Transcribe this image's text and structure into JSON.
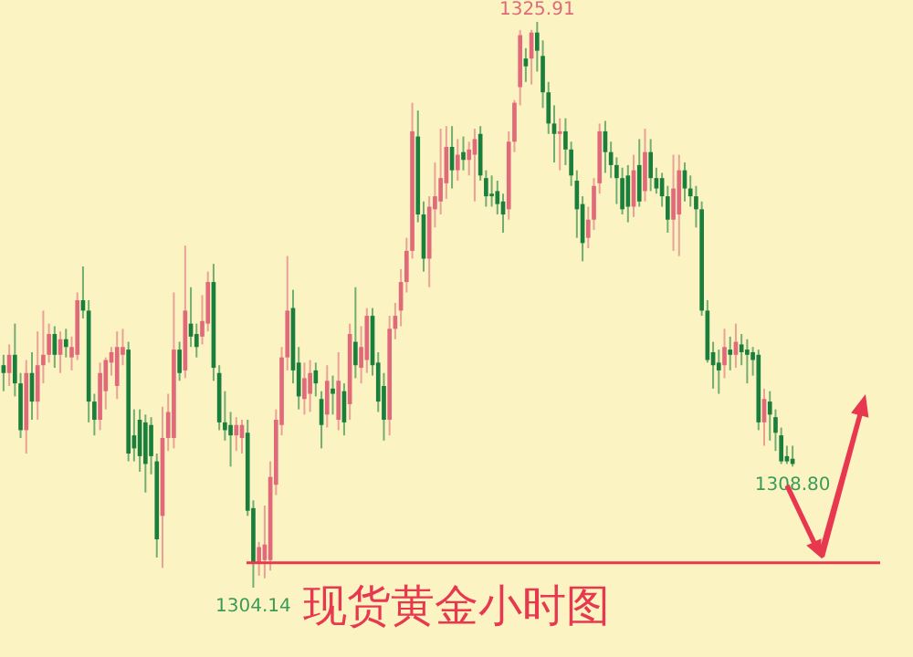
{
  "chart_data": {
    "type": "candlestick",
    "title": "现货黄金小时图",
    "categories": [
      null,
      null,
      null,
      null,
      null,
      null,
      null,
      null,
      null,
      null,
      null,
      null,
      null,
      null,
      null,
      null,
      null,
      null,
      null,
      null,
      null,
      null,
      null,
      null,
      null,
      null,
      null,
      null,
      null,
      null,
      null,
      null,
      null,
      null,
      null,
      null,
      null,
      null,
      null,
      null,
      null,
      null,
      null,
      null,
      null,
      null,
      null,
      null,
      null,
      null,
      null,
      null,
      null,
      null,
      null,
      null,
      null,
      null,
      null,
      null,
      null,
      null,
      null,
      null,
      null,
      null,
      null,
      null,
      null,
      null,
      null,
      null,
      null,
      null,
      null,
      null,
      null,
      null,
      null,
      null,
      null,
      null,
      null,
      null,
      null,
      null,
      null,
      null,
      null,
      null,
      null,
      null,
      null,
      null,
      null,
      null,
      null,
      null,
      null,
      null,
      null,
      null,
      null,
      null,
      null,
      null,
      null,
      null,
      null,
      null,
      null,
      null,
      null,
      null,
      null,
      null,
      null,
      null,
      null,
      null,
      null,
      null,
      null,
      null,
      null,
      null,
      null,
      null,
      null,
      null,
      null,
      null,
      null,
      null,
      null,
      null,
      null,
      null,
      null,
      null
    ],
    "ohlc": [
      [
        1312.7,
        1313.1,
        1311.7,
        1312.4
      ],
      [
        1312.4,
        1313.5,
        1311.9,
        1313.1
      ],
      [
        1313.1,
        1314.3,
        1311.5,
        1312.0
      ],
      [
        1312.0,
        1312.4,
        1309.9,
        1310.2
      ],
      [
        1310.2,
        1312.9,
        1309.3,
        1312.4
      ],
      [
        1312.4,
        1313.2,
        1310.6,
        1311.3
      ],
      [
        1311.3,
        1314.0,
        1310.6,
        1312.7
      ],
      [
        1312.7,
        1314.8,
        1312.0,
        1313.1
      ],
      [
        1313.1,
        1314.3,
        1312.8,
        1313.9
      ],
      [
        1313.9,
        1314.2,
        1312.6,
        1313.1
      ],
      [
        1313.1,
        1314.0,
        1312.4,
        1313.7
      ],
      [
        1313.7,
        1314.1,
        1313.0,
        1313.4
      ],
      [
        1313.0,
        1313.8,
        1312.5,
        1313.4
      ],
      [
        1313.1,
        1315.5,
        1312.9,
        1315.2
      ],
      [
        1315.2,
        1316.5,
        1314.5,
        1314.8
      ],
      [
        1314.8,
        1315.2,
        1310.5,
        1311.3
      ],
      [
        1311.3,
        1311.6,
        1310.0,
        1310.6
      ],
      [
        1310.6,
        1312.8,
        1310.2,
        1312.4
      ],
      [
        1311.7,
        1313.0,
        1311.0,
        1312.9
      ],
      [
        1312.8,
        1313.4,
        1312.3,
        1313.2
      ],
      [
        1311.9,
        1314.0,
        1311.4,
        1313.4
      ],
      [
        1313.1,
        1314.1,
        1312.7,
        1313.4
      ],
      [
        1313.3,
        1313.6,
        1309.0,
        1309.3
      ],
      [
        1310.0,
        1311.0,
        1309.0,
        1309.5
      ],
      [
        1310.6,
        1311.0,
        1308.6,
        1309.2
      ],
      [
        1310.5,
        1310.8,
        1307.8,
        1308.9
      ],
      [
        1310.4,
        1310.7,
        1308.5,
        1309.2
      ],
      [
        1309.0,
        1309.3,
        1305.3,
        1306.0
      ],
      [
        1306.9,
        1311.1,
        1304.9,
        1309.9
      ],
      [
        1309.9,
        1311.6,
        1309.4,
        1310.9
      ],
      [
        1309.9,
        1315.5,
        1309.5,
        1313.3
      ],
      [
        1313.3,
        1313.6,
        1312.1,
        1312.4
      ],
      [
        1312.5,
        1317.3,
        1312.2,
        1314.8
      ],
      [
        1314.3,
        1315.7,
        1313.4,
        1313.8
      ],
      [
        1313.9,
        1314.3,
        1313.0,
        1313.4
      ],
      [
        1313.8,
        1315.4,
        1313.5,
        1314.4
      ],
      [
        1314.3,
        1316.3,
        1314.0,
        1315.9
      ],
      [
        1315.9,
        1316.6,
        1312.1,
        1312.6
      ],
      [
        1312.4,
        1312.7,
        1310.2,
        1310.5
      ],
      [
        1310.5,
        1311.7,
        1309.8,
        1310.2
      ],
      [
        1310.4,
        1310.9,
        1308.8,
        1310.0
      ],
      [
        1310.0,
        1310.7,
        1309.4,
        1310.4
      ],
      [
        1309.9,
        1310.6,
        1309.3,
        1310.4
      ],
      [
        1310.1,
        1310.6,
        1306.9,
        1307.1
      ],
      [
        1307.2,
        1307.5,
        1304.14,
        1305.1
      ],
      [
        1305.1,
        1305.9,
        1304.6,
        1305.7
      ],
      [
        1305.2,
        1307.3,
        1304.5,
        1305.8
      ],
      [
        1305.2,
        1309.0,
        1304.8,
        1308.4
      ],
      [
        1308.1,
        1311.0,
        1307.7,
        1310.6
      ],
      [
        1310.4,
        1313.4,
        1310.0,
        1313.0
      ],
      [
        1313.0,
        1316.9,
        1312.5,
        1314.8
      ],
      [
        1314.9,
        1315.6,
        1312.0,
        1312.5
      ],
      [
        1312.8,
        1313.4,
        1311.0,
        1311.5
      ],
      [
        1311.4,
        1312.8,
        1310.8,
        1312.2
      ],
      [
        1311.6,
        1312.9,
        1310.9,
        1312.4
      ],
      [
        1312.5,
        1312.8,
        1311.5,
        1312.0
      ],
      [
        1311.4,
        1311.7,
        1309.5,
        1310.4
      ],
      [
        1310.8,
        1312.7,
        1310.3,
        1312.1
      ],
      [
        1311.8,
        1312.3,
        1310.8,
        1311.6
      ],
      [
        1310.6,
        1313.2,
        1310.2,
        1312.1
      ],
      [
        1311.7,
        1312.0,
        1310.0,
        1310.5
      ],
      [
        1311.2,
        1314.3,
        1310.6,
        1313.9
      ],
      [
        1313.6,
        1315.7,
        1312.2,
        1312.7
      ],
      [
        1312.6,
        1314.2,
        1312.0,
        1313.4
      ],
      [
        1312.9,
        1314.9,
        1312.4,
        1314.6
      ],
      [
        1314.6,
        1314.9,
        1312.3,
        1312.7
      ],
      [
        1312.8,
        1313.2,
        1310.9,
        1311.3
      ],
      [
        1311.9,
        1312.4,
        1309.8,
        1310.6
      ],
      [
        1310.6,
        1314.6,
        1310.0,
        1314.1
      ],
      [
        1314.1,
        1315.1,
        1313.7,
        1314.6
      ],
      [
        1314.8,
        1316.4,
        1314.2,
        1315.9
      ],
      [
        1315.9,
        1317.6,
        1315.5,
        1317.1
      ],
      [
        1317.1,
        1322.8,
        1316.8,
        1321.7
      ],
      [
        1321.5,
        1322.5,
        1318.2,
        1318.5
      ],
      [
        1318.5,
        1319.0,
        1316.3,
        1316.8
      ],
      [
        1316.8,
        1319.2,
        1315.7,
        1318.8
      ],
      [
        1318.7,
        1320.5,
        1318.0,
        1319.2
      ],
      [
        1319.0,
        1321.8,
        1318.5,
        1319.9
      ],
      [
        1319.7,
        1321.9,
        1319.1,
        1321.1
      ],
      [
        1321.1,
        1321.9,
        1319.5,
        1320.2
      ],
      [
        1320.2,
        1321.4,
        1319.8,
        1320.8
      ],
      [
        1320.9,
        1321.5,
        1320.2,
        1320.6
      ],
      [
        1320.6,
        1321.3,
        1320.0,
        1321.0
      ],
      [
        1320.8,
        1321.8,
        1319.0,
        1321.4
      ],
      [
        1321.6,
        1321.9,
        1319.8,
        1320.0
      ],
      [
        1319.9,
        1320.2,
        1318.8,
        1319.2
      ],
      [
        1319.3,
        1320.0,
        1318.8,
        1319.2
      ],
      [
        1319.4,
        1319.8,
        1318.5,
        1318.9
      ],
      [
        1319.0,
        1319.3,
        1317.8,
        1318.5
      ],
      [
        1318.7,
        1321.7,
        1318.3,
        1321.3
      ],
      [
        1321.3,
        1322.9,
        1320.9,
        1322.8
      ],
      [
        1323.4,
        1325.6,
        1322.7,
        1325.4
      ],
      [
        1324.5,
        1324.9,
        1323.6,
        1324.2
      ],
      [
        1324.5,
        1325.6,
        1323.5,
        1325.5
      ],
      [
        1325.5,
        1325.91,
        1324.0,
        1324.8
      ],
      [
        1324.6,
        1325.2,
        1322.6,
        1323.2
      ],
      [
        1323.2,
        1323.6,
        1321.6,
        1322.0
      ],
      [
        1322.0,
        1322.7,
        1320.5,
        1321.6
      ],
      [
        1321.6,
        1322.2,
        1320.2,
        1321.7
      ],
      [
        1321.7,
        1322.2,
        1320.4,
        1321.0
      ],
      [
        1321.0,
        1321.3,
        1319.6,
        1320.0
      ],
      [
        1319.8,
        1320.2,
        1317.6,
        1318.7
      ],
      [
        1318.9,
        1319.2,
        1316.7,
        1317.4
      ],
      [
        1317.6,
        1318.8,
        1317.2,
        1318.3
      ],
      [
        1318.3,
        1319.9,
        1317.9,
        1319.6
      ],
      [
        1319.7,
        1322.0,
        1319.3,
        1321.7
      ],
      [
        1321.7,
        1322.1,
        1320.1,
        1320.9
      ],
      [
        1320.9,
        1321.3,
        1319.9,
        1320.4
      ],
      [
        1320.4,
        1320.7,
        1318.9,
        1319.9
      ],
      [
        1319.9,
        1320.3,
        1318.5,
        1318.7
      ],
      [
        1320.0,
        1320.4,
        1318.2,
        1318.8
      ],
      [
        1318.8,
        1320.8,
        1318.4,
        1320.2
      ],
      [
        1320.4,
        1321.4,
        1318.8,
        1319.0
      ],
      [
        1319.4,
        1321.8,
        1319.0,
        1320.9
      ],
      [
        1320.9,
        1321.4,
        1319.4,
        1319.9
      ],
      [
        1319.9,
        1320.3,
        1319.3,
        1319.5
      ],
      [
        1319.9,
        1320.1,
        1318.8,
        1319.2
      ],
      [
        1319.2,
        1319.6,
        1317.8,
        1318.3
      ],
      [
        1318.3,
        1320.8,
        1317.1,
        1319.5
      ],
      [
        1318.5,
        1320.8,
        1316.9,
        1320.2
      ],
      [
        1320.2,
        1320.5,
        1319.0,
        1319.5
      ],
      [
        1319.5,
        1320.0,
        1318.8,
        1319.2
      ],
      [
        1319.2,
        1319.6,
        1318.0,
        1318.7
      ],
      [
        1318.7,
        1319.0,
        1314.6,
        1314.8
      ],
      [
        1314.8,
        1315.2,
        1312.8,
        1312.9
      ],
      [
        1313.2,
        1313.6,
        1311.8,
        1312.7
      ],
      [
        1312.8,
        1313.3,
        1311.6,
        1312.5
      ],
      [
        1312.7,
        1314.1,
        1312.2,
        1313.4
      ],
      [
        1313.3,
        1313.8,
        1312.5,
        1313.1
      ],
      [
        1313.1,
        1314.3,
        1312.6,
        1313.6
      ],
      [
        1313.5,
        1313.9,
        1312.7,
        1313.2
      ],
      [
        1313.3,
        1313.7,
        1312.0,
        1313.1
      ],
      [
        1313.2,
        1313.4,
        1312.3,
        1312.9
      ],
      [
        1313.1,
        1313.3,
        1310.2,
        1310.5
      ],
      [
        1310.5,
        1311.8,
        1309.6,
        1311.4
      ],
      [
        1311.3,
        1311.7,
        1309.8,
        1310.8
      ],
      [
        1310.7,
        1311.0,
        1309.4,
        1310.1
      ],
      [
        1310.0,
        1310.3,
        1308.9,
        1309.0
      ],
      [
        1309.2,
        1309.6,
        1308.9,
        1309.0
      ],
      [
        1309.1,
        1309.6,
        1308.8,
        1308.9
      ]
    ],
    "ref_lines": [
      {
        "axis": "y",
        "value": 1305.1,
        "color": "#e8384f"
      }
    ],
    "annotations": [
      {
        "text": "1325.91",
        "y": 1325.91
      },
      {
        "text": "1304.14",
        "y": 1304.14
      },
      {
        "text": "1308.80",
        "y": 1308.8
      }
    ]
  }
}
